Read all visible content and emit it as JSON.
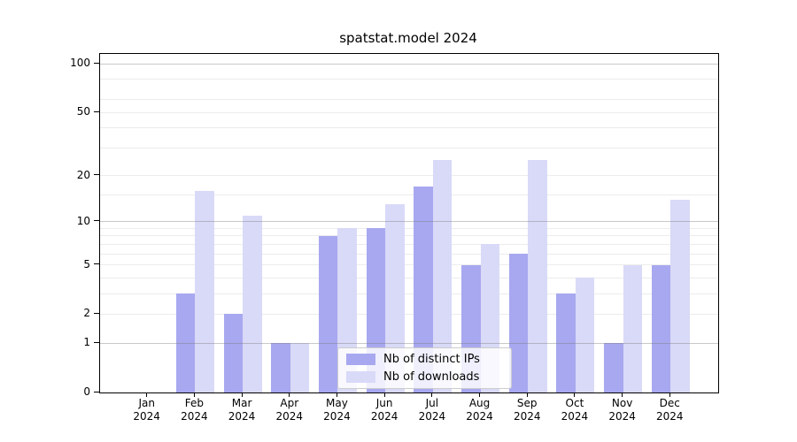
{
  "title": "spatstat.model 2024",
  "chart_data": {
    "type": "bar",
    "title": "spatstat.model 2024",
    "categories": [
      "Jan",
      "Feb",
      "Mar",
      "Apr",
      "May",
      "Jun",
      "Jul",
      "Aug",
      "Sep",
      "Oct",
      "Nov",
      "Dec"
    ],
    "year_label": "2024",
    "series": [
      {
        "name": "Nb of distinct IPs",
        "color": "#a8a8f0",
        "values": [
          0,
          3,
          2,
          1,
          8,
          9,
          17,
          5,
          6,
          3,
          1,
          5
        ]
      },
      {
        "name": "Nb of downloads",
        "color": "#d9d9f8",
        "values": [
          0,
          16,
          11,
          1,
          9,
          13,
          25,
          7,
          25,
          4,
          5,
          14
        ]
      }
    ],
    "yticks": [
      0,
      1,
      2,
      5,
      10,
      20,
      50,
      100
    ],
    "major_gridlines": [
      1,
      10,
      100
    ],
    "minor_gridlines": [
      2,
      3,
      4,
      5,
      6,
      7,
      8,
      9,
      15,
      20,
      30,
      40,
      50,
      60,
      80
    ],
    "ylim": [
      0,
      100
    ],
    "yscale": "log1p",
    "grid": true,
    "legend_position": "bottom-center",
    "xlabel": "",
    "ylabel": ""
  }
}
